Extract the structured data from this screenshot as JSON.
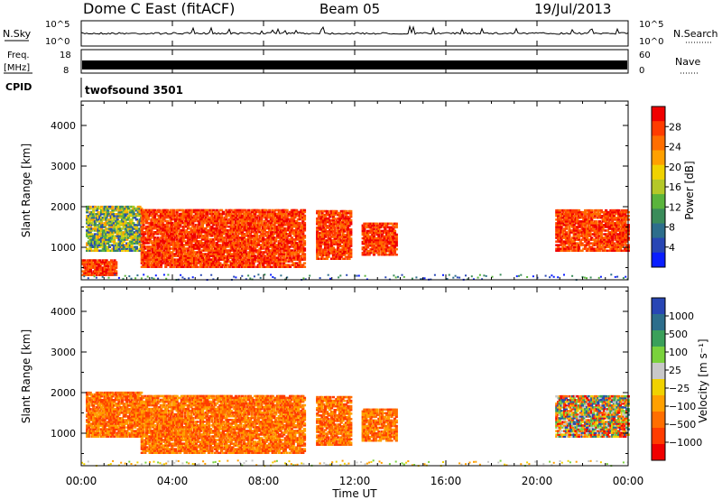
{
  "header": {
    "title": "Dome C East (fitACF)",
    "beam": "Beam 05",
    "date": "19/Jul/2013"
  },
  "noise_panel": {
    "left_label": "N.Sky",
    "right_label": "N.Search",
    "left_ticks": [
      "10^5",
      "10^0"
    ],
    "right_ticks": [
      "10^5",
      "10^0"
    ]
  },
  "freq_panel": {
    "left_label_1": "Freq.",
    "left_label_2": "[MHz]",
    "right_label": "Nave",
    "left_ticks": [
      "18",
      "8"
    ],
    "right_ticks": [
      "60",
      "0"
    ]
  },
  "cpid": {
    "label": "CPID",
    "value": "twofsound 3501"
  },
  "x_axis": {
    "ticks": [
      "00:00",
      "04:00",
      "08:00",
      "12:00",
      "16:00",
      "20:00",
      "00:00"
    ],
    "label": "Time UT"
  },
  "colors": {
    "power": [
      "#0a1eff",
      "#2846b4",
      "#2d6e8c",
      "#3a8c5a",
      "#5ab43c",
      "#b4c828",
      "#f0d200",
      "#ffa000",
      "#ff6e00",
      "#ff3c00",
      "#f00000"
    ],
    "velocity": [
      "#f00000",
      "#ff3c00",
      "#ff6e00",
      "#ffa000",
      "#f0d200",
      "#c8c8c8",
      "#7ad23c",
      "#3aa05a",
      "#2d6e8c",
      "#2846b4"
    ]
  },
  "chart_data": [
    {
      "type": "heatmap",
      "name": "power",
      "ylabel": "Slant Range [km]",
      "yticks": [
        "1000",
        "2000",
        "3000",
        "4000"
      ],
      "ylim": [
        200,
        4600
      ],
      "xlim_hours": [
        0,
        24
      ],
      "colorbar_label": "Power [dB]",
      "colorbar_ticks": [
        "4",
        "8",
        "12",
        "16",
        "20",
        "24",
        "28"
      ],
      "regions_hours_km": [
        {
          "t": [
            0.2,
            2.6
          ],
          "r": [
            900,
            2000
          ],
          "level": "mid"
        },
        {
          "t": [
            0.0,
            1.5
          ],
          "r": [
            300,
            700
          ],
          "level": "high"
        },
        {
          "t": [
            2.6,
            9.8
          ],
          "r": [
            500,
            1900
          ],
          "level": "high"
        },
        {
          "t": [
            10.3,
            11.8
          ],
          "r": [
            700,
            1900
          ],
          "level": "high"
        },
        {
          "t": [
            12.3,
            13.8
          ],
          "r": [
            800,
            1600
          ],
          "level": "high"
        },
        {
          "t": [
            20.8,
            24.0
          ],
          "r": [
            900,
            1900
          ],
          "level": "high"
        }
      ]
    },
    {
      "type": "heatmap",
      "name": "velocity",
      "ylabel": "Slant Range [km]",
      "yticks": [
        "1000",
        "2000",
        "3000",
        "4000"
      ],
      "ylim": [
        200,
        4600
      ],
      "xlim_hours": [
        0,
        24
      ],
      "colorbar_label": "Velocity [m s⁻¹]",
      "colorbar_ticks": [
        "1000",
        "500",
        "100",
        "25",
        "−25",
        "−100",
        "−500",
        "−1000"
      ],
      "regions_hours_km": [
        {
          "t": [
            0.2,
            2.6
          ],
          "r": [
            900,
            2000
          ],
          "level": "neg"
        },
        {
          "t": [
            2.6,
            9.8
          ],
          "r": [
            500,
            1900
          ],
          "level": "neg"
        },
        {
          "t": [
            10.3,
            11.8
          ],
          "r": [
            700,
            1900
          ],
          "level": "neg"
        },
        {
          "t": [
            12.3,
            13.8
          ],
          "r": [
            800,
            1600
          ],
          "level": "neg"
        },
        {
          "t": [
            20.8,
            24.0
          ],
          "r": [
            900,
            1900
          ],
          "level": "mixed"
        }
      ]
    }
  ]
}
